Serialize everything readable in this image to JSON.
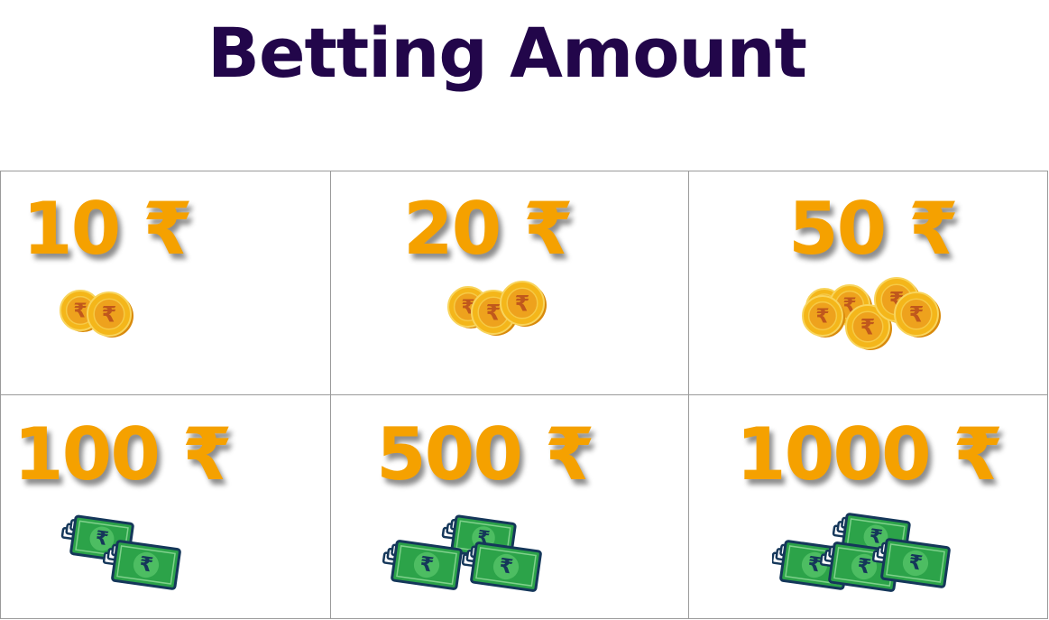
{
  "title": "Betting Amount",
  "colors": {
    "title": "#22064a",
    "amount": "#f5a100",
    "coin": "#f4b61a",
    "coin_rim": "#d98a0b",
    "coin_symbol": "#c0581c",
    "note": "#2ca349",
    "note_outline": "#15375a"
  },
  "options": [
    {
      "label": "10 ₹",
      "icon": "coins-icon",
      "count": 2
    },
    {
      "label": "20 ₹",
      "icon": "coins-icon",
      "count": 3
    },
    {
      "label": "50 ₹",
      "icon": "coins-icon",
      "count": 6
    },
    {
      "label": "100 ₹",
      "icon": "banknotes-icon",
      "count": 2
    },
    {
      "label": "500 ₹",
      "icon": "banknotes-icon",
      "count": 3
    },
    {
      "label": "1000 ₹",
      "icon": "banknotes-icon",
      "count": 4
    }
  ]
}
